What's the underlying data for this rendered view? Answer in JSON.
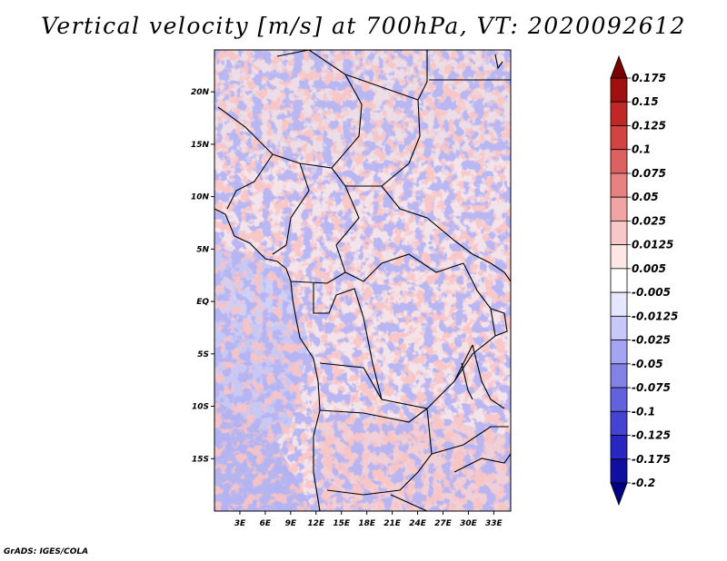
{
  "title": "Vertical velocity [m/s] at 700hPa, VT: 2020092612",
  "footer": "GrADS: IGES/COLA",
  "map": {
    "lon_range": [
      0,
      35
    ],
    "lat_range": [
      -20,
      24
    ],
    "lon_labels": [
      "3E",
      "6E",
      "9E",
      "12E",
      "15E",
      "18E",
      "21E",
      "24E",
      "27E",
      "30E",
      "33E"
    ],
    "lat_labels": [
      "20N",
      "15N",
      "10N",
      "5N",
      "EQ",
      "5S",
      "10S",
      "15S"
    ]
  },
  "colorbar": {
    "levels": [
      "0.175",
      "0.15",
      "0.125",
      "0.1",
      "0.075",
      "0.05",
      "0.025",
      "0.0125",
      "0.005",
      "-0.005",
      "-0.0125",
      "-0.025",
      "-0.05",
      "-0.075",
      "-0.1",
      "-0.125",
      "-0.175",
      "-0.2"
    ],
    "colors": [
      "#7a0000",
      "#a01010",
      "#c02828",
      "#d24444",
      "#dc6262",
      "#e68282",
      "#f0a4a4",
      "#f8c8c8",
      "#fde6e6",
      "#ffffff",
      "#e6e6fd",
      "#c8c8f8",
      "#a4a4f0",
      "#8282e6",
      "#6262dc",
      "#4444d2",
      "#2828c0",
      "#1010a0",
      "#000080"
    ]
  }
}
